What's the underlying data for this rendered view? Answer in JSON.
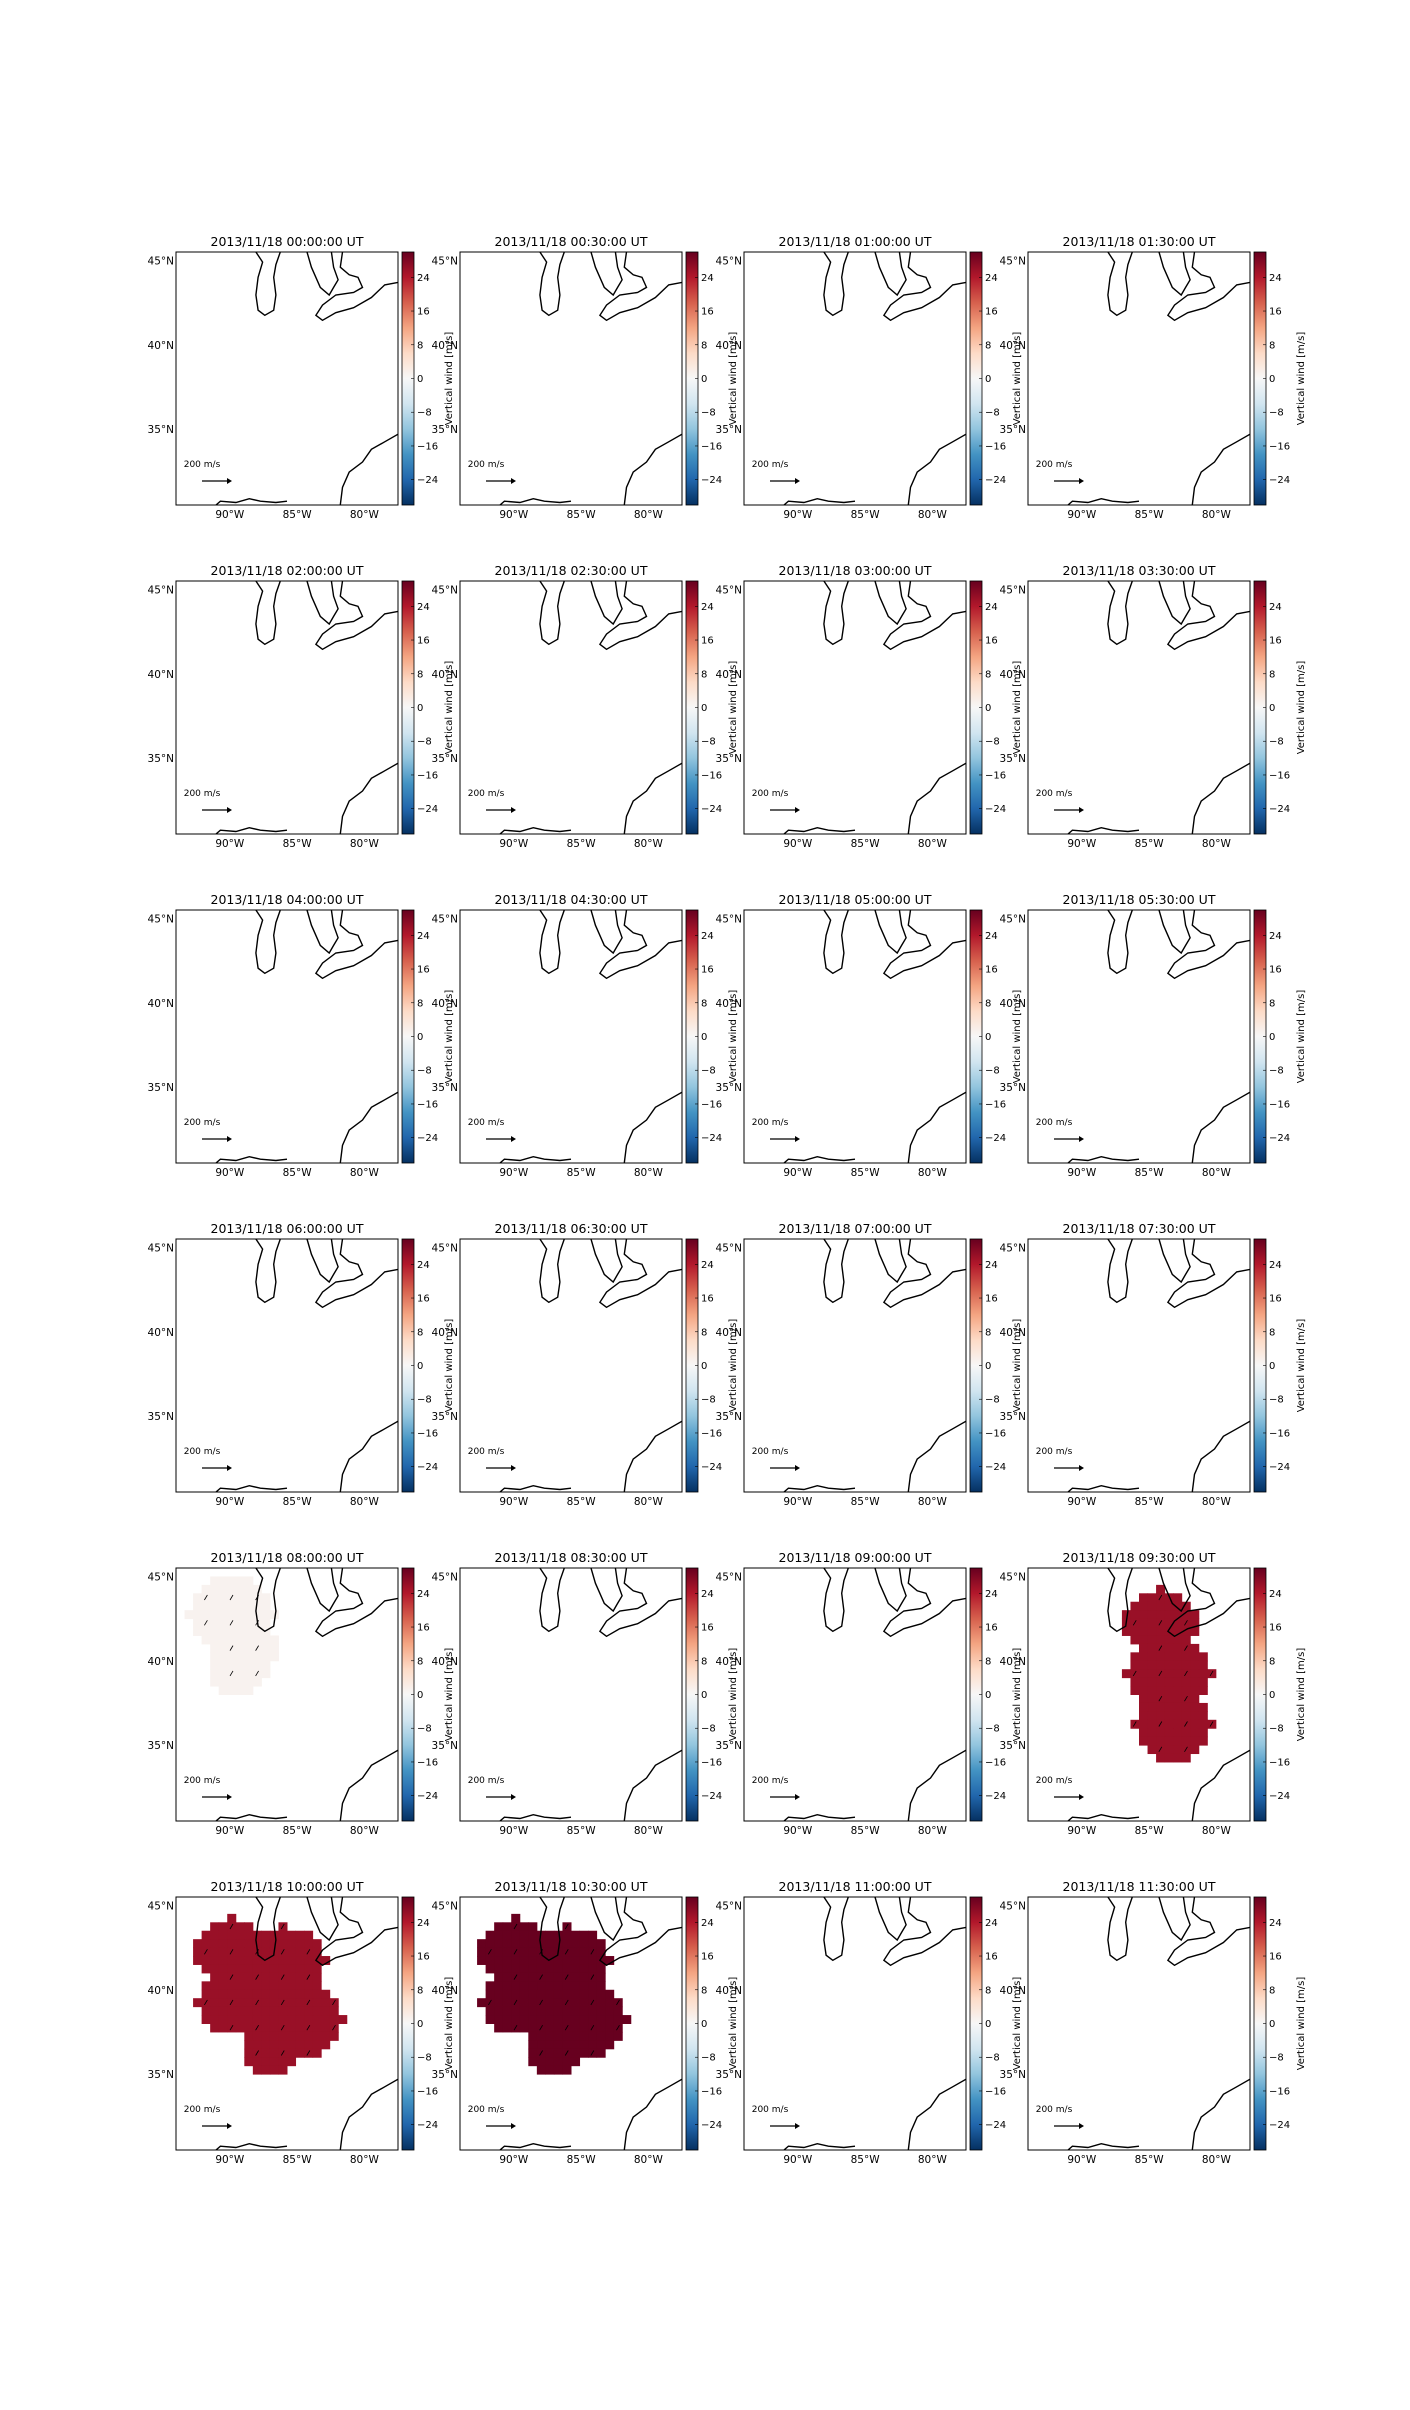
{
  "figure": {
    "colorbar": {
      "label": "Vertical wind [m/s]",
      "ticks": [
        "24",
        "16",
        "8",
        "0",
        "−8",
        "−16",
        "−24"
      ],
      "range": [
        -30,
        30
      ],
      "colormap": [
        "#053061",
        "#2166ac",
        "#4393c3",
        "#92c5de",
        "#d1e5f0",
        "#f7f7f7",
        "#fddbc7",
        "#f4a582",
        "#d6604d",
        "#b2182b",
        "#67001f"
      ]
    },
    "axes": {
      "xticks": [
        "90°W",
        "85°W",
        "80°W"
      ],
      "yticks": [
        "45°N",
        "40°N",
        "35°N"
      ],
      "lon_range": [
        -94,
        -77.5
      ],
      "lat_range": [
        30.5,
        45.5
      ]
    },
    "quiver_key_label": "200 m/s",
    "coastline_color": "#000000"
  },
  "chart_data": [
    {
      "type": "heatmap",
      "title": "2013/11/18 00:00:00 UT",
      "region": "none",
      "value": 0
    },
    {
      "type": "heatmap",
      "title": "2013/11/18 00:30:00 UT",
      "region": "none",
      "value": 0
    },
    {
      "type": "heatmap",
      "title": "2013/11/18 01:00:00 UT",
      "region": "none",
      "value": 0
    },
    {
      "type": "heatmap",
      "title": "2013/11/18 01:30:00 UT",
      "region": "none",
      "value": 0
    },
    {
      "type": "heatmap",
      "title": "2013/11/18 02:00:00 UT",
      "region": "none",
      "value": 0
    },
    {
      "type": "heatmap",
      "title": "2013/11/18 02:30:00 UT",
      "region": "none",
      "value": 0
    },
    {
      "type": "heatmap",
      "title": "2013/11/18 03:00:00 UT",
      "region": "none",
      "value": 0
    },
    {
      "type": "heatmap",
      "title": "2013/11/18 03:30:00 UT",
      "region": "none",
      "value": 0
    },
    {
      "type": "heatmap",
      "title": "2013/11/18 04:00:00 UT",
      "region": "none",
      "value": 0
    },
    {
      "type": "heatmap",
      "title": "2013/11/18 04:30:00 UT",
      "region": "none",
      "value": 0
    },
    {
      "type": "heatmap",
      "title": "2013/11/18 05:00:00 UT",
      "region": "none",
      "value": 0
    },
    {
      "type": "heatmap",
      "title": "2013/11/18 05:30:00 UT",
      "region": "none",
      "value": 0
    },
    {
      "type": "heatmap",
      "title": "2013/11/18 06:00:00 UT",
      "region": "none",
      "value": 0
    },
    {
      "type": "heatmap",
      "title": "2013/11/18 06:30:00 UT",
      "region": "none",
      "value": 0
    },
    {
      "type": "heatmap",
      "title": "2013/11/18 07:00:00 UT",
      "region": "none",
      "value": 0
    },
    {
      "type": "heatmap",
      "title": "2013/11/18 07:30:00 UT",
      "region": "none",
      "value": 0
    },
    {
      "type": "heatmap",
      "title": "2013/11/18 08:00:00 UT",
      "region": "northwest",
      "value": 1
    },
    {
      "type": "heatmap",
      "title": "2013/11/18 08:30:00 UT",
      "region": "none",
      "value": 0
    },
    {
      "type": "heatmap",
      "title": "2013/11/18 09:00:00 UT",
      "region": "none",
      "value": 0
    },
    {
      "type": "heatmap",
      "title": "2013/11/18 09:30:00 UT",
      "region": "east",
      "value": 26
    },
    {
      "type": "heatmap",
      "title": "2013/11/18 10:00:00 UT",
      "region": "central",
      "value": 26
    },
    {
      "type": "heatmap",
      "title": "2013/11/18 10:30:00 UT",
      "region": "central",
      "value": 30
    },
    {
      "type": "heatmap",
      "title": "2013/11/18 11:00:00 UT",
      "region": "none",
      "value": 0
    },
    {
      "type": "heatmap",
      "title": "2013/11/18 11:30:00 UT",
      "region": "none",
      "value": 0
    }
  ]
}
